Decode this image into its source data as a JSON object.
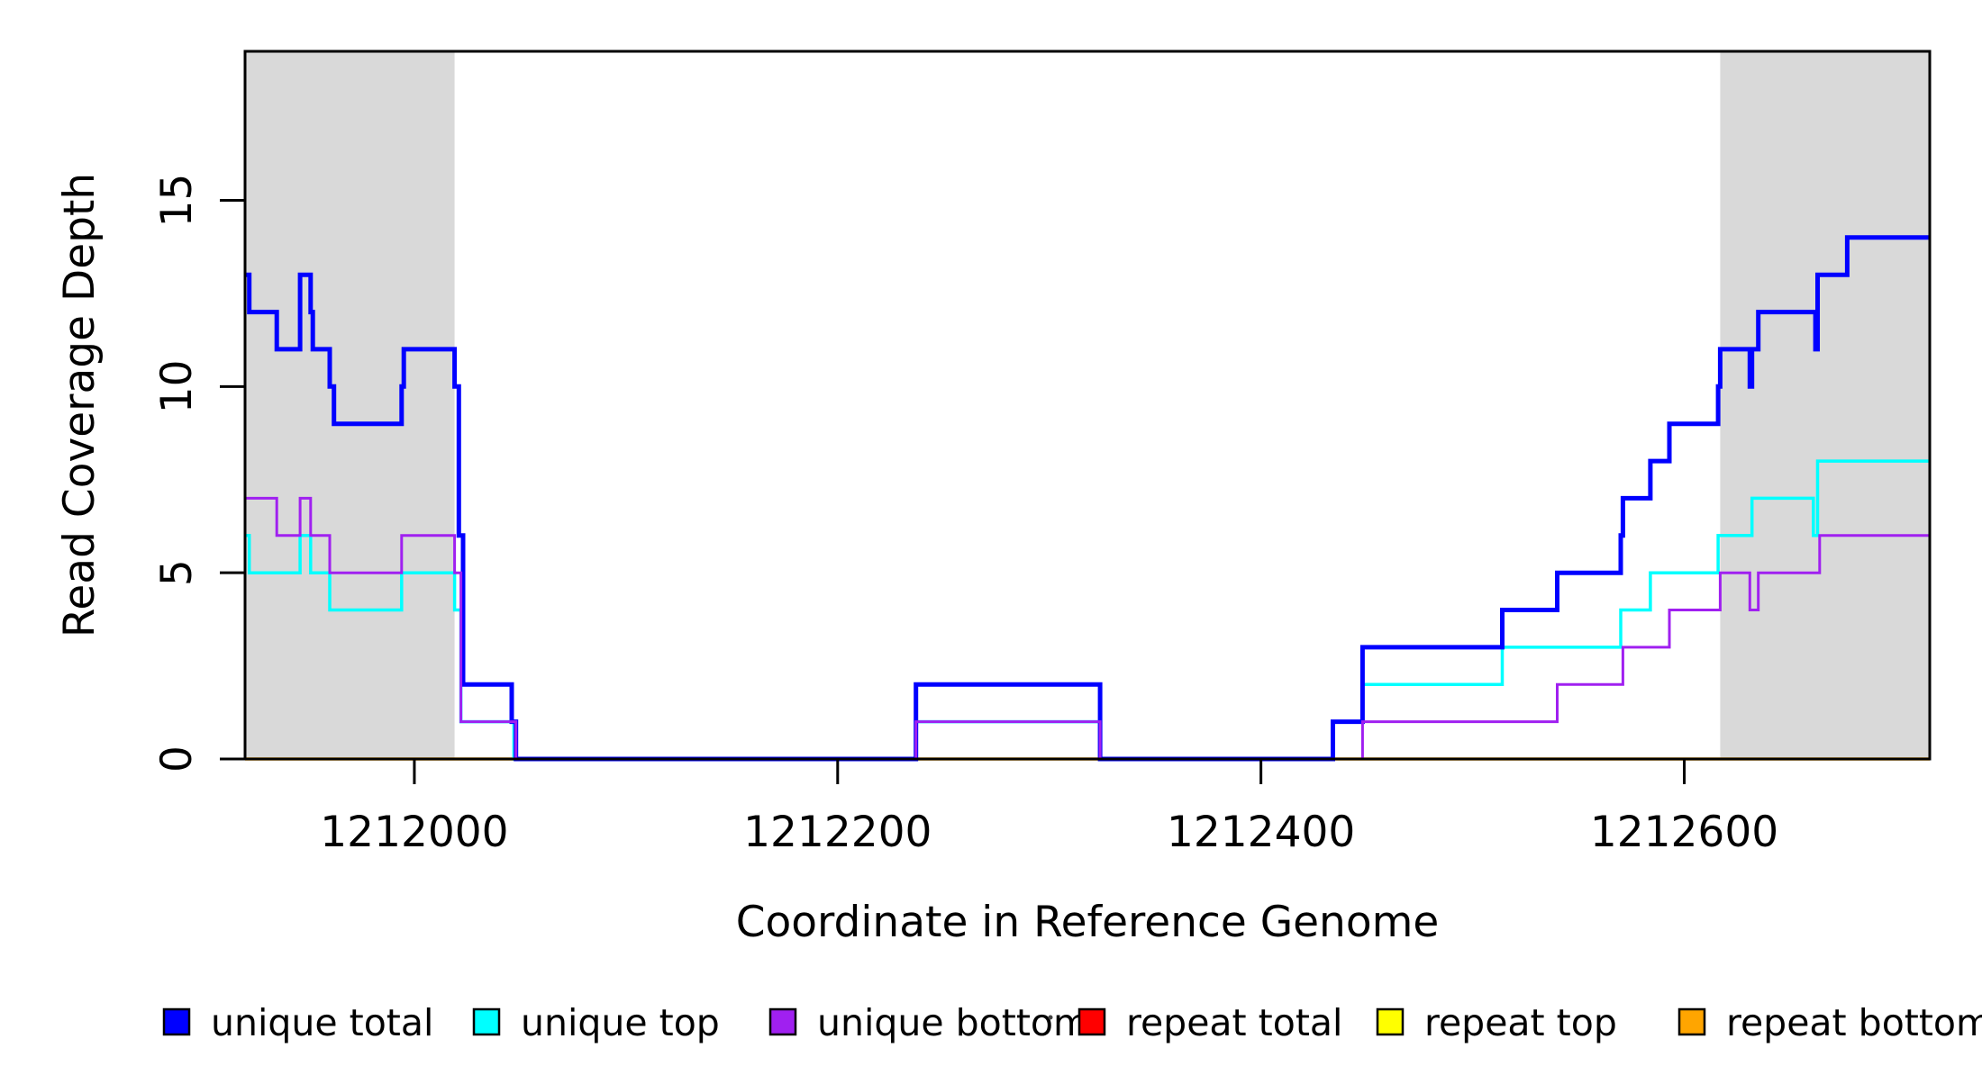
{
  "chart_data": {
    "type": "line",
    "subtype": "step-after-coverage-plot",
    "title": "",
    "xlabel": "Coordinate in Reference Genome",
    "ylabel": "Read Coverage Depth",
    "xlim": [
      1211920,
      1212716
    ],
    "ylim": [
      0,
      19
    ],
    "x_ticks": [
      1212000,
      1212200,
      1212400,
      1212600
    ],
    "x_tick_labels": [
      "1212000",
      "1212200",
      "1212400",
      "1212600"
    ],
    "y_ticks": [
      0,
      5,
      10,
      15
    ],
    "y_tick_labels": [
      "0",
      "5",
      "10",
      "15"
    ],
    "grid": false,
    "background_color": "#ffffff",
    "axis_color": "#000000",
    "shaded_regions": [
      {
        "x0": 1211920,
        "x1": 1212019,
        "color": "#D9D9D9"
      },
      {
        "x0": 1212617,
        "x1": 1212716,
        "color": "#D9D9D9"
      }
    ],
    "series": [
      {
        "name": "repeat total",
        "color": "#FF0000",
        "line_width": 3,
        "points": [
          [
            1211920,
            0
          ],
          [
            1212716,
            0
          ]
        ]
      },
      {
        "name": "repeat top",
        "color": "#FFFF00",
        "line_width": 3,
        "points": [
          [
            1211920,
            0
          ],
          [
            1212716,
            0
          ]
        ]
      },
      {
        "name": "repeat bottom",
        "color": "#FFA500",
        "line_width": 3.5,
        "points": [
          [
            1211920,
            0
          ],
          [
            1212716,
            0
          ]
        ]
      },
      {
        "name": "unique top",
        "color": "#00FFFF",
        "line_width": 3.5,
        "points": [
          [
            1211920,
            6
          ],
          [
            1211922,
            5
          ],
          [
            1211946,
            6
          ],
          [
            1211951,
            5
          ],
          [
            1211960,
            4
          ],
          [
            1211994,
            5
          ],
          [
            1212019,
            4
          ],
          [
            1212022,
            1
          ],
          [
            1212047,
            0
          ],
          [
            1212237,
            1
          ],
          [
            1212324,
            0
          ],
          [
            1212434,
            1
          ],
          [
            1212448,
            2
          ],
          [
            1212514,
            3
          ],
          [
            1212570,
            4
          ],
          [
            1212584,
            5
          ],
          [
            1212616,
            6
          ],
          [
            1212632,
            7
          ],
          [
            1212661,
            6
          ],
          [
            1212663,
            8
          ],
          [
            1212716,
            8
          ]
        ]
      },
      {
        "name": "unique total",
        "color": "#0000FF",
        "line_width": 5,
        "points": [
          [
            1211920,
            13
          ],
          [
            1211922,
            12
          ],
          [
            1211935,
            11
          ],
          [
            1211946,
            13
          ],
          [
            1211951,
            12
          ],
          [
            1211952,
            11
          ],
          [
            1211960,
            10
          ],
          [
            1211962,
            9
          ],
          [
            1211994,
            10
          ],
          [
            1211995,
            11
          ],
          [
            1212019,
            10
          ],
          [
            1212021,
            6
          ],
          [
            1212023,
            2
          ],
          [
            1212046,
            1
          ],
          [
            1212048,
            0
          ],
          [
            1212237,
            2
          ],
          [
            1212324,
            0
          ],
          [
            1212434,
            1
          ],
          [
            1212448,
            3
          ],
          [
            1212514,
            4
          ],
          [
            1212540,
            5
          ],
          [
            1212570,
            6
          ],
          [
            1212571,
            7
          ],
          [
            1212584,
            8
          ],
          [
            1212593,
            9
          ],
          [
            1212616,
            10
          ],
          [
            1212617,
            11
          ],
          [
            1212631,
            10
          ],
          [
            1212632,
            11
          ],
          [
            1212635,
            12
          ],
          [
            1212662,
            11
          ],
          [
            1212663,
            13
          ],
          [
            1212677,
            14
          ],
          [
            1212716,
            14
          ]
        ]
      },
      {
        "name": "unique bottom",
        "color": "#A020F0",
        "line_width": 3,
        "points": [
          [
            1211920,
            7
          ],
          [
            1211935,
            6
          ],
          [
            1211946,
            7
          ],
          [
            1211951,
            6
          ],
          [
            1211960,
            5
          ],
          [
            1211994,
            6
          ],
          [
            1212019,
            5
          ],
          [
            1212022,
            1
          ],
          [
            1212048,
            0
          ],
          [
            1212237,
            1
          ],
          [
            1212324,
            0
          ],
          [
            1212448,
            1
          ],
          [
            1212540,
            2
          ],
          [
            1212571,
            3
          ],
          [
            1212593,
            4
          ],
          [
            1212617,
            5
          ],
          [
            1212631,
            4
          ],
          [
            1212635,
            5
          ],
          [
            1212664,
            6
          ],
          [
            1212716,
            6
          ]
        ]
      }
    ],
    "legend": {
      "position": "bottom",
      "entries": [
        {
          "label": "unique total",
          "color": "#0000FF"
        },
        {
          "label": "unique top",
          "color": "#00FFFF"
        },
        {
          "label": "unique bottom",
          "color": "#A020F0"
        },
        {
          "label": "repeat total",
          "color": "#FF0000"
        },
        {
          "label": "repeat top",
          "color": "#FFFF00"
        },
        {
          "label": "repeat bottom",
          "color": "#FFA500"
        }
      ]
    }
  }
}
